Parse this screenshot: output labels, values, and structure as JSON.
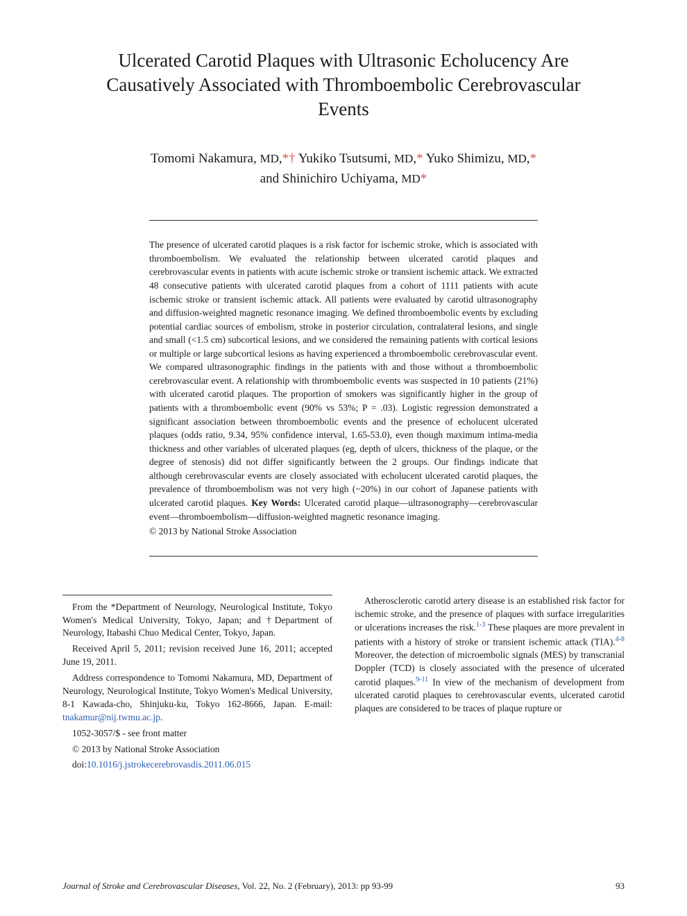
{
  "title": "Ulcerated Carotid Plaques with Ultrasonic Echolucency Are Causatively Associated with Thromboembolic Cerebrovascular Events",
  "authors_line1": "Tomomi Nakamura, ",
  "md": "MD",
  "aff1": "*†",
  "authors_sep": " Yukiko Tsutsumi, ",
  "aff2": "*",
  "authors_sep2": " Yuko Shimizu, ",
  "aff3": "*",
  "authors_line2": "and Shinichiro Uchiyama, ",
  "aff4": "*",
  "abstract": "The presence of ulcerated carotid plaques is a risk factor for ischemic stroke, which is associated with thromboembolism. We evaluated the relationship between ulcerated carotid plaques and cerebrovascular events in patients with acute ischemic stroke or transient ischemic attack. We extracted 48 consecutive patients with ulcerated carotid plaques from a cohort of 1111 patients with acute ischemic stroke or transient ischemic attack. All patients were evaluated by carotid ultrasonography and diffusion-weighted magnetic resonance imaging. We defined thromboembolic events by excluding potential cardiac sources of embolism, stroke in posterior circulation, contralateral lesions, and single and small (<1.5 cm) subcortical lesions, and we considered the remaining patients with cortical lesions or multiple or large subcortical lesions as having experienced a thromboembolic cerebrovascular event. We compared ultrasonographic findings in the patients with and those without a thromboembolic cerebrovascular event. A relationship with thromboembolic events was suspected in 10 patients (21%) with ulcerated carotid plaques. The proportion of smokers was significantly higher in the group of patients with a thromboembolic event (90% vs 53%; P = .03). Logistic regression demonstrated a significant association between thromboembolic events and the presence of echolucent ulcerated plaques (odds ratio, 9.34, 95% confidence interval, 1.65-53.0), even though maximum intima-media thickness and other variables of ulcerated plaques (eg, depth of ulcers, thickness of the plaque, or the degree of stenosis) did not differ significantly between the 2 groups. Our findings indicate that although cerebrovascular events are closely associated with echolucent ulcerated carotid plaques, the prevalence of thromboembolism was not very high (~20%) in our cohort of Japanese patients with ulcerated carotid plaques. ",
  "keywords_label": "Key Words:",
  "keywords": " Ulcerated carotid plaque—ultrasonography—cerebrovascular event—thromboembolism—diffusion-weighted magnetic resonance imaging.",
  "copyright_abs": "© 2013 by National Stroke Association",
  "footnote_from": "From the *Department of Neurology, Neurological Institute, Tokyo Women's Medical University, Tokyo, Japan; and †Department of Neurology, Itabashi Chuo Medical Center, Tokyo, Japan.",
  "footnote_received": "Received April 5, 2011; revision received June 16, 2011; accepted June 19, 2011.",
  "footnote_address": "Address correspondence to Tomomi Nakamura, MD, Department of Neurology, Neurological Institute, Tokyo Women's Medical University, 8-1 Kawada-cho, Shinjuku-ku, Tokyo 162-8666, Japan. E-mail: ",
  "footnote_email": "tnakamur@nij.twmu.ac.jp",
  "footnote_email_period": ".",
  "footnote_issn": "1052-3057/$ - see front matter",
  "footnote_copyright": "© 2013 by National Stroke Association",
  "footnote_doi_prefix": "doi:",
  "footnote_doi": "10.1016/j.jstrokecerebrovasdis.2011.06.015",
  "body_p1_a": "Atherosclerotic carotid artery disease is an established risk factor for ischemic stroke, and the presence of plaques with surface irregularities or ulcerations increases the risk.",
  "body_p1_sup1": "1-3",
  "body_p1_b": " These plaques are more prevalent in patients with a history of stroke or transient ischemic attack (TIA).",
  "body_p1_sup2": "4-8",
  "body_p1_c": " Moreover, the detection of microembolic signals (MES) by transcranial Doppler (TCD) is closely associated with the presence of ulcerated carotid plaques.",
  "body_p1_sup3": "9-11",
  "body_p1_d": " In view of the mechanism of development from ulcerated carotid plaques to cerebrovascular events, ulcerated carotid plaques are considered to be traces of plaque rupture or",
  "footer_journal": "Journal of Stroke and Cerebrovascular Diseases",
  "footer_info": ", Vol. 22, No. 2 (February), 2013: pp 93-99",
  "footer_page": "93",
  "colors": {
    "text": "#1a1a1a",
    "affiliation": "#d9534f",
    "link": "#2a5db0",
    "divider": "#333333",
    "background": "#ffffff"
  }
}
